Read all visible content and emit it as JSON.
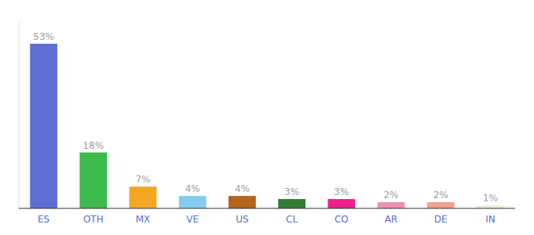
{
  "chart_data": {
    "type": "bar",
    "categories": [
      "ES",
      "OTH",
      "MX",
      "VE",
      "US",
      "CL",
      "CO",
      "AR",
      "DE",
      "IN"
    ],
    "values": [
      53,
      18,
      7,
      4,
      4,
      3,
      3,
      2,
      2,
      1
    ],
    "value_labels": [
      "53%",
      "18%",
      "7%",
      "4%",
      "4%",
      "3%",
      "3%",
      "2%",
      "2%",
      "1%"
    ],
    "colors": [
      "#5b6fd6",
      "#3dba4e",
      "#f5a623",
      "#85ccee",
      "#b5651d",
      "#2e7d32",
      "#f01e8c",
      "#f48fb1",
      "#f4a090",
      "#f0eedc"
    ],
    "ylim": [
      0,
      60
    ],
    "data_labels": true,
    "tick_labels": "x",
    "grid": false
  }
}
